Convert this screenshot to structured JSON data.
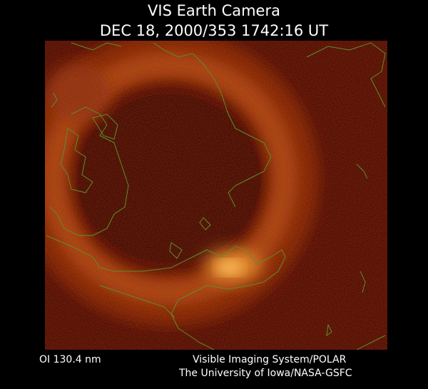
{
  "header": {
    "title": "VIS Earth Camera",
    "timestamp": "DEC 18, 2000/353 1742:16 UT"
  },
  "footer": {
    "wavelength": "OI 130.4 nm",
    "instrument": "Visible Imaging System/POLAR",
    "credit": "The University of Iowa/NASA-GSFC"
  }
}
